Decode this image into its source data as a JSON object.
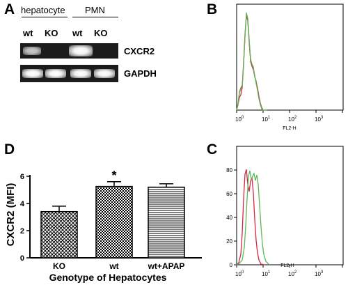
{
  "panels": {
    "a_label": "A",
    "b_label": "B",
    "c_label": "C",
    "d_label": "D"
  },
  "gel": {
    "group_hepatocyte": "hepatocyte",
    "group_pmn": "PMN",
    "lanes": [
      "wt",
      "KO",
      "wt",
      "KO"
    ],
    "row_cxcr2": "CXCR2",
    "row_gapdh": "GAPDH",
    "cxcr2_band_present": [
      true,
      false,
      true,
      false
    ]
  },
  "flow_b": {
    "x_axis_label": "FL2-H",
    "x_ticks": [
      "10^0",
      "10^1",
      "10^2",
      "10^3"
    ],
    "y_ticks": []
  },
  "flow_c": {
    "x_axis_label": "FL2-H",
    "x_ticks": [
      "10^0",
      "10^1",
      "10^2",
      "10^3"
    ],
    "y_ticks": [
      "0",
      "20",
      "40",
      "60",
      "80"
    ]
  },
  "chart_data": {
    "type": "bar",
    "categories": [
      "KO",
      "wt",
      "wt+APAP"
    ],
    "values": [
      3.4,
      5.25,
      5.2
    ],
    "errors": [
      0.4,
      0.35,
      0.25
    ],
    "patterns": [
      "crosshatch",
      "checker",
      "horizontal-lines"
    ],
    "annotations": [
      {
        "category": "wt",
        "text": "*"
      }
    ],
    "xlabel": "Genotype of Hepatocytes",
    "ylabel": "CXCR2 (MFI)",
    "ylim": [
      0,
      6
    ],
    "yticks": [
      0,
      2,
      4,
      6
    ]
  },
  "colors": {
    "flow_red": "#d7263d",
    "flow_green": "#5cb85c",
    "flow_brown": "#9a6b2f"
  }
}
